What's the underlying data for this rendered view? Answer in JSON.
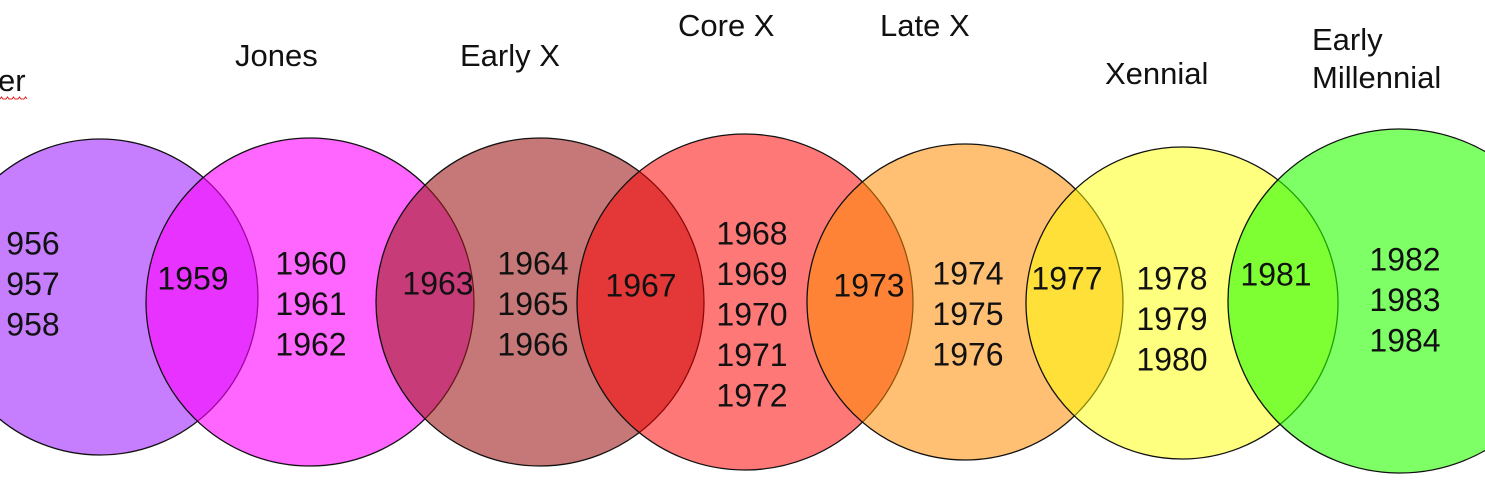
{
  "groups": [
    {
      "label": "er",
      "years": [
        "956",
        "957",
        "958"
      ]
    },
    {
      "label": "Jones",
      "years": [
        "1960",
        "1961",
        "1962"
      ]
    },
    {
      "label": "Early X",
      "years": [
        "1964",
        "1965",
        "1966"
      ]
    },
    {
      "label": "Core X",
      "years": [
        "1968",
        "1969",
        "1970",
        "1971",
        "1972"
      ]
    },
    {
      "label": "Late X",
      "years": [
        "1974",
        "1975",
        "1976"
      ]
    },
    {
      "label": "Xennial",
      "years": [
        "1978",
        "1979",
        "1980"
      ]
    },
    {
      "label": "Early Millennial",
      "years": [
        "1982",
        "1983",
        "1984"
      ]
    }
  ],
  "overlaps": [
    "1959",
    "1963",
    "1967",
    "1973",
    "1977",
    "1981"
  ]
}
